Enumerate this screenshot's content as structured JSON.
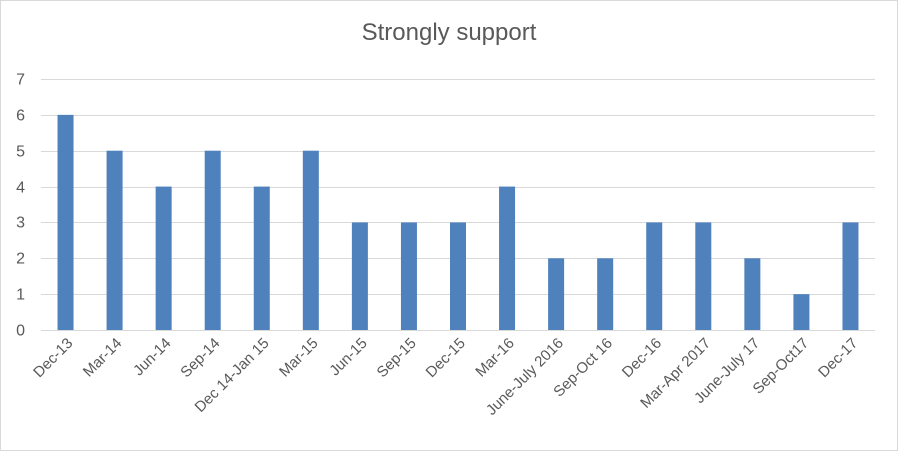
{
  "chart_data": {
    "type": "bar",
    "title": "Strongly support",
    "categories": [
      "Dec-13",
      "Mar-14",
      "Jun-14",
      "Sep-14",
      "Dec 14-Jan 15",
      "Mar-15",
      "Jun-15",
      "Sep-15",
      "Dec-15",
      "Mar-16",
      "June-July 2016",
      "Sep-Oct 16",
      "Dec-16",
      "Mar-Apr 2017",
      "June-July 17",
      "Sep-Oct17",
      "Dec-17"
    ],
    "values": [
      6,
      5,
      4,
      5,
      4,
      5,
      3,
      3,
      3,
      4,
      2,
      2,
      3,
      3,
      2,
      1,
      3
    ],
    "ylim": [
      0,
      7
    ],
    "yticks": [
      0,
      1,
      2,
      3,
      4,
      5,
      6,
      7
    ],
    "xlabel": "",
    "ylabel": "",
    "grid": true,
    "legend": "none",
    "colors": {
      "bar": "#4f81bd",
      "grid": "#d9d9d9",
      "axis": "#d9d9d9",
      "text": "#595959"
    }
  }
}
